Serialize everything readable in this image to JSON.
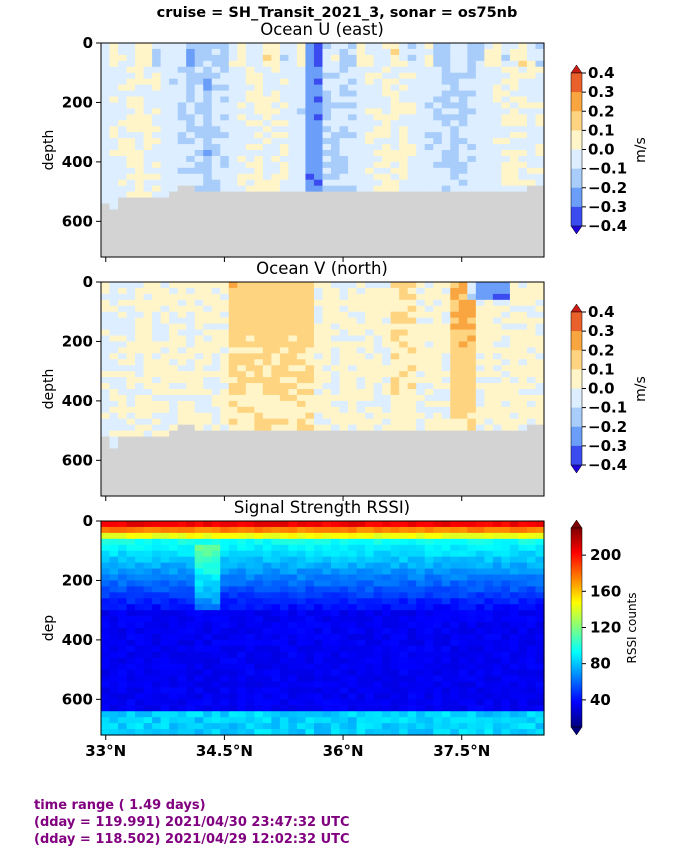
{
  "suptitle": "cruise = SH_Transit_2021_3,  sonar = os75nb",
  "footer": {
    "line1": "time range ( 1.49 days)",
    "line2": "(dday = 119.991) 2021/04/30 23:47:32 UTC",
    "line3": "(dday = 118.502) 2021/04/29 12:02:32 UTC"
  },
  "chart_data": [
    {
      "type": "heatmap",
      "title": "Ocean U (east)",
      "ylabel": "depth",
      "xlabel": "",
      "x_ticks": [
        "33°N",
        "34.5°N",
        "36°N",
        "37.5°N"
      ],
      "x_tick_values": [
        33.0,
        34.5,
        36.0,
        37.5
      ],
      "xlim": [
        32.94,
        38.54
      ],
      "y_ticks": [
        0,
        200,
        400,
        600
      ],
      "ylim": [
        720,
        0
      ],
      "colorbar": {
        "label": "m/s",
        "ticks": [
          "0.4",
          "0.3",
          "0.2",
          "0.1",
          "0.0",
          "−0.1",
          "−0.2",
          "−0.3",
          "−0.4"
        ],
        "range": [
          -0.4,
          0.4
        ],
        "colormap": "bwr-diverging",
        "extend": "both"
      },
      "valid_data_bottom_depth_m": [
        540,
        560,
        510,
        505,
        505,
        505,
        505,
        505,
        490,
        480,
        480,
        490,
        500,
        500,
        500,
        500,
        500,
        500,
        500,
        500,
        500,
        500,
        500,
        500,
        500,
        500,
        500,
        500,
        500,
        500,
        495,
        495,
        495,
        495,
        495,
        495,
        495,
        495,
        495,
        495,
        495,
        495,
        495,
        495,
        495,
        495,
        495,
        495,
        490,
        485,
        480,
        470
      ],
      "bathymetry_color": "#d3d3d3"
    },
    {
      "type": "heatmap",
      "title": "Ocean V (north)",
      "ylabel": "depth",
      "xlabel": "",
      "x_ticks": [
        "33°N",
        "34.5°N",
        "36°N",
        "37.5°N"
      ],
      "x_tick_values": [
        33.0,
        34.5,
        36.0,
        37.5
      ],
      "xlim": [
        32.94,
        38.54
      ],
      "y_ticks": [
        0,
        200,
        400,
        600
      ],
      "ylim": [
        720,
        0
      ],
      "colorbar": {
        "label": "m/s",
        "ticks": [
          "0.4",
          "0.3",
          "0.2",
          "0.1",
          "0.0",
          "−0.1",
          "−0.2",
          "−0.3",
          "−0.4"
        ],
        "range": [
          -0.4,
          0.4
        ],
        "colormap": "bwr-diverging",
        "extend": "both"
      },
      "valid_data_bottom_depth_m": [
        520,
        555,
        510,
        505,
        505,
        505,
        505,
        505,
        490,
        480,
        480,
        490,
        500,
        500,
        500,
        500,
        500,
        500,
        500,
        500,
        500,
        500,
        500,
        500,
        500,
        500,
        500,
        500,
        500,
        500,
        495,
        495,
        495,
        495,
        495,
        495,
        495,
        495,
        495,
        495,
        495,
        495,
        495,
        495,
        495,
        495,
        495,
        495,
        490,
        485,
        480,
        470
      ],
      "bathymetry_color": "#d3d3d3"
    },
    {
      "type": "heatmap",
      "title": "Signal Strength RSSI)",
      "ylabel": "dep",
      "xlabel": "",
      "x_ticks": [
        "33°N",
        "34.5°N",
        "36°N",
        "37.5°N"
      ],
      "x_tick_values": [
        33.0,
        34.5,
        36.0,
        37.5
      ],
      "xlim": [
        32.94,
        38.54
      ],
      "y_ticks": [
        0,
        200,
        400,
        600
      ],
      "ylim": [
        720,
        0
      ],
      "colorbar": {
        "label": "RSSI counts",
        "ticks": [
          "200",
          "160",
          "120",
          "80",
          "40"
        ],
        "tick_values": [
          200,
          160,
          120,
          80,
          40
        ],
        "range": [
          10,
          230
        ],
        "colormap": "jet",
        "extend": "both"
      }
    }
  ]
}
